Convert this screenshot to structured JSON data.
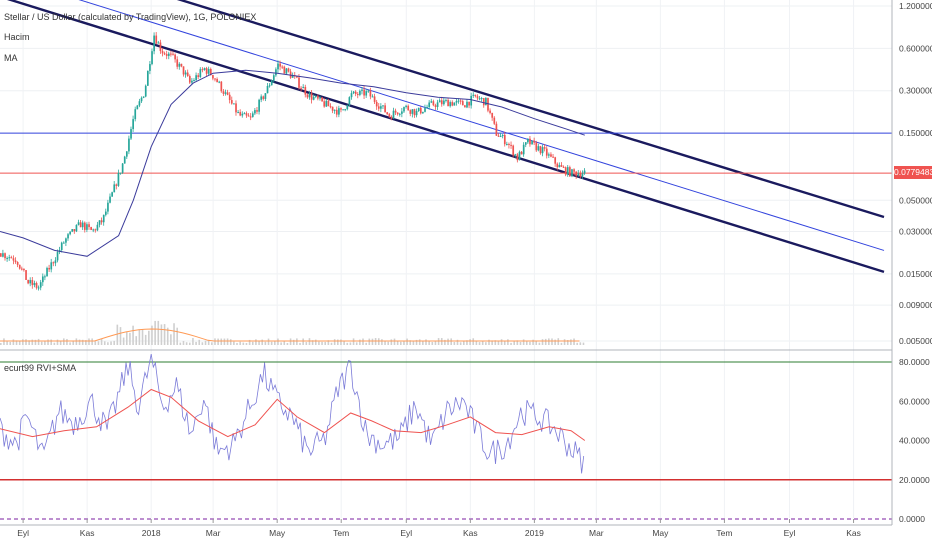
{
  "legend": {
    "title": "Stellar / US Dollar (calculated by TradingView), 1G, POLONIEX",
    "volume": "Hacim",
    "ma": "MA",
    "indicator": "ecurt99 RVI+SMA"
  },
  "last_price_label": "0.07794833",
  "colors": {
    "up": "#26a69a",
    "down": "#ef5350",
    "channel": "#1a1a5e",
    "mid_line": "#3344dd",
    "ma": "#3b3b9b",
    "rvi": "#7b7bd8",
    "rvi_sma": "#ef5350",
    "volume": "#cfcfcf",
    "volume_ma": "#ff9a55",
    "level_top": "#2e7d32",
    "level_low": "#d32f2f",
    "level_zero": "#7b1fa2"
  },
  "chart_data": [
    {
      "type": "candlestick",
      "title": "Stellar / US Dollar (calculated by TradingView), 1G, POLONIEX",
      "y_scale": "log",
      "y_ticks": [
        "1.20000000",
        "0.60000000",
        "0.30000000",
        "0.15000000",
        "0.05000000",
        "0.03000000",
        "0.01500000",
        "0.00900000",
        "0.00500000"
      ],
      "x_ticks": [
        "Eyl",
        "Kas",
        "2018",
        "Mar",
        "May",
        "Tem",
        "Eyl",
        "Kas",
        "2019",
        "Mar",
        "May",
        "Tem",
        "Eyl",
        "Kas"
      ],
      "x_range": [
        "2017-08-10",
        "2019-11-30"
      ],
      "price_path": [
        [
          "2017-08-10",
          0.021
        ],
        [
          "2017-08-25",
          0.019
        ],
        [
          "2017-09-05",
          0.013
        ],
        [
          "2017-09-15",
          0.012
        ],
        [
          "2017-09-25",
          0.0165
        ],
        [
          "2017-10-10",
          0.026
        ],
        [
          "2017-10-25",
          0.034
        ],
        [
          "2017-11-05",
          0.03
        ],
        [
          "2017-11-15",
          0.036
        ],
        [
          "2017-11-25",
          0.058
        ],
        [
          "2017-12-05",
          0.095
        ],
        [
          "2017-12-15",
          0.2
        ],
        [
          "2017-12-25",
          0.3
        ],
        [
          "2018-01-03",
          0.75
        ],
        [
          "2018-01-10",
          0.58
        ],
        [
          "2018-01-20",
          0.52
        ],
        [
          "2018-02-01",
          0.4
        ],
        [
          "2018-02-06",
          0.34
        ],
        [
          "2018-02-20",
          0.43
        ],
        [
          "2018-03-01",
          0.38
        ],
        [
          "2018-03-15",
          0.26
        ],
        [
          "2018-03-25",
          0.2
        ],
        [
          "2018-04-05",
          0.19
        ],
        [
          "2018-04-20",
          0.3
        ],
        [
          "2018-05-01",
          0.46
        ],
        [
          "2018-05-15",
          0.38
        ],
        [
          "2018-05-30",
          0.28
        ],
        [
          "2018-06-15",
          0.24
        ],
        [
          "2018-06-30",
          0.21
        ],
        [
          "2018-07-10",
          0.28
        ],
        [
          "2018-07-25",
          0.29
        ],
        [
          "2018-08-05",
          0.24
        ],
        [
          "2018-08-15",
          0.2
        ],
        [
          "2018-08-30",
          0.23
        ],
        [
          "2018-09-10",
          0.21
        ],
        [
          "2018-09-25",
          0.24
        ],
        [
          "2018-10-10",
          0.25
        ],
        [
          "2018-10-25",
          0.24
        ],
        [
          "2018-11-05",
          0.27
        ],
        [
          "2018-11-15",
          0.25
        ],
        [
          "2018-11-25",
          0.15
        ],
        [
          "2018-12-05",
          0.13
        ],
        [
          "2018-12-15",
          0.1
        ],
        [
          "2018-12-25",
          0.13
        ],
        [
          "2019-01-10",
          0.11
        ],
        [
          "2019-01-25",
          0.085
        ],
        [
          "2019-02-05",
          0.078
        ],
        [
          "2019-02-18",
          0.079
        ]
      ],
      "ma_path": [
        [
          "2017-08-10",
          0.03
        ],
        [
          "2017-09-01",
          0.027
        ],
        [
          "2017-10-01",
          0.022
        ],
        [
          "2017-11-01",
          0.02
        ],
        [
          "2017-12-01",
          0.028
        ],
        [
          "2017-12-15",
          0.05
        ],
        [
          "2018-01-01",
          0.12
        ],
        [
          "2018-01-20",
          0.24
        ],
        [
          "2018-02-10",
          0.34
        ],
        [
          "2018-03-01",
          0.4
        ],
        [
          "2018-04-01",
          0.42
        ],
        [
          "2018-05-01",
          0.4
        ],
        [
          "2018-06-01",
          0.37
        ],
        [
          "2018-07-01",
          0.34
        ],
        [
          "2018-08-01",
          0.32
        ],
        [
          "2018-09-01",
          0.29
        ],
        [
          "2018-10-01",
          0.27
        ],
        [
          "2018-11-01",
          0.26
        ],
        [
          "2018-12-01",
          0.23
        ],
        [
          "2019-01-01",
          0.19
        ],
        [
          "2019-02-01",
          0.16
        ],
        [
          "2019-02-18",
          0.145
        ]
      ],
      "channel_lines": [
        {
          "name": "upper",
          "from": [
            "2017-08-10",
            3.3
          ],
          "to": [
            "2019-11-30",
            0.038
          ]
        },
        {
          "name": "middle",
          "from": [
            "2017-09-20",
            1.6
          ],
          "to": [
            "2019-11-30",
            0.022
          ]
        },
        {
          "name": "lower",
          "from": [
            "2017-08-10",
            1.4
          ],
          "to": [
            "2019-11-30",
            0.0155
          ]
        }
      ],
      "horizontal_levels": [
        {
          "value": 0.15,
          "color": "#3344dd"
        },
        {
          "value": 0.07794833,
          "color": "#ef5350"
        }
      ],
      "last_price": 0.07794833
    },
    {
      "type": "line",
      "title": "ecurt99 RVI+SMA",
      "ylim": [
        0,
        85
      ],
      "y_ticks": [
        "80.0000",
        "60.0000",
        "40.0000",
        "20.0000",
        "0.0000"
      ],
      "levels": [
        80,
        20,
        0
      ],
      "rvi_path": [
        [
          "2017-08-10",
          46
        ],
        [
          "2017-08-25",
          38
        ],
        [
          "2017-09-05",
          52
        ],
        [
          "2017-09-20",
          31
        ],
        [
          "2017-10-05",
          55
        ],
        [
          "2017-10-20",
          49
        ],
        [
          "2017-11-05",
          60
        ],
        [
          "2017-11-20",
          45
        ],
        [
          "2017-12-01",
          63
        ],
        [
          "2017-12-10",
          78
        ],
        [
          "2017-12-20",
          57
        ],
        [
          "2018-01-01",
          82
        ],
        [
          "2018-01-12",
          57
        ],
        [
          "2018-01-25",
          68
        ],
        [
          "2018-02-08",
          43
        ],
        [
          "2018-02-20",
          62
        ],
        [
          "2018-03-05",
          34
        ],
        [
          "2018-03-20",
          38
        ],
        [
          "2018-04-05",
          57
        ],
        [
          "2018-04-18",
          74
        ],
        [
          "2018-05-01",
          60
        ],
        [
          "2018-05-15",
          52
        ],
        [
          "2018-05-30",
          34
        ],
        [
          "2018-06-15",
          40
        ],
        [
          "2018-06-28",
          66
        ],
        [
          "2018-07-10",
          78
        ],
        [
          "2018-07-25",
          43
        ],
        [
          "2018-08-10",
          38
        ],
        [
          "2018-08-25",
          41
        ],
        [
          "2018-09-10",
          58
        ],
        [
          "2018-09-25",
          38
        ],
        [
          "2018-10-10",
          55
        ],
        [
          "2018-10-25",
          60
        ],
        [
          "2018-11-10",
          42
        ],
        [
          "2018-11-20",
          33
        ],
        [
          "2018-12-05",
          38
        ],
        [
          "2018-12-20",
          55
        ],
        [
          "2019-01-05",
          52
        ],
        [
          "2019-01-20",
          46
        ],
        [
          "2019-02-05",
          36
        ],
        [
          "2019-02-18",
          28
        ]
      ],
      "sma_path": [
        [
          "2017-08-10",
          46
        ],
        [
          "2017-09-10",
          42
        ],
        [
          "2017-10-10",
          45
        ],
        [
          "2017-11-10",
          47
        ],
        [
          "2017-12-10",
          57
        ],
        [
          "2018-01-01",
          66
        ],
        [
          "2018-01-20",
          62
        ],
        [
          "2018-02-15",
          50
        ],
        [
          "2018-03-15",
          42
        ],
        [
          "2018-04-10",
          48
        ],
        [
          "2018-05-01",
          61
        ],
        [
          "2018-05-20",
          52
        ],
        [
          "2018-06-15",
          44
        ],
        [
          "2018-07-10",
          54
        ],
        [
          "2018-07-30",
          50
        ],
        [
          "2018-08-20",
          45
        ],
        [
          "2018-09-15",
          44
        ],
        [
          "2018-10-10",
          48
        ],
        [
          "2018-11-01",
          52
        ],
        [
          "2018-11-25",
          44
        ],
        [
          "2018-12-20",
          43
        ],
        [
          "2019-01-15",
          47
        ],
        [
          "2019-02-05",
          45
        ],
        [
          "2019-02-18",
          40
        ]
      ]
    }
  ]
}
